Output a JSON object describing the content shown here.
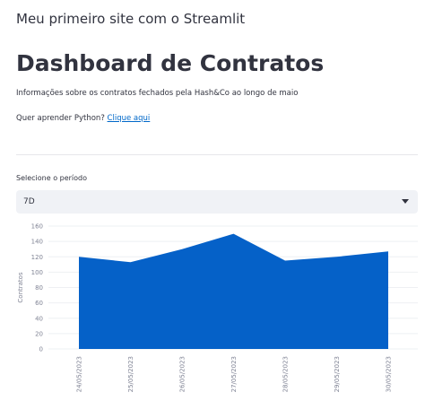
{
  "header": {
    "site_title": "Meu primeiro site com o Streamlit",
    "title": "Dashboard de Contratos",
    "description": "Informações sobre os contratos fechados pela Hash&Co ao longo de maio",
    "learn_text": "Quer aprender Python?",
    "learn_link": "Clique aqui"
  },
  "period_select": {
    "label": "Selecione o período",
    "value": "7D"
  },
  "chart_data": {
    "type": "area",
    "y_label": "Contratos",
    "categories": [
      "24/05/2023",
      "25/05/2023",
      "26/05/2023",
      "27/05/2023",
      "28/05/2023",
      "29/05/2023",
      "30/05/2023"
    ],
    "values": [
      120,
      113,
      130,
      150,
      115,
      120,
      127
    ],
    "color": "#0561c8",
    "ylim": [
      0,
      160
    ],
    "yticks": [
      0,
      20,
      40,
      60,
      80,
      100,
      120,
      140,
      160
    ],
    "grid": true
  }
}
